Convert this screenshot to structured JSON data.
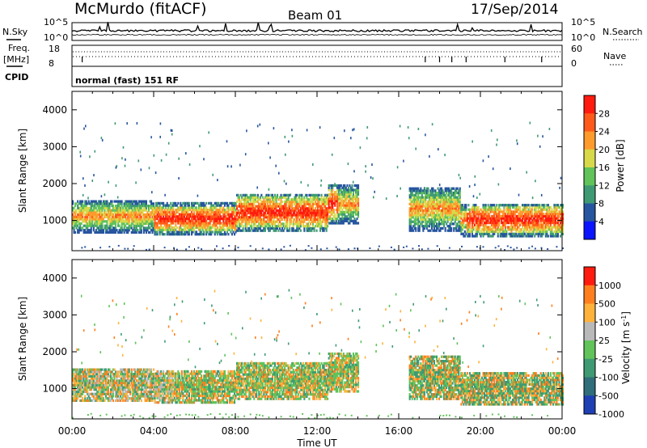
{
  "header": {
    "station": "McMurdo (fitACF)",
    "beam": "Beam 01",
    "date": "17/Sep/2014"
  },
  "noise_panel": {
    "left_label": "N.Sky",
    "right_label": "N.Search",
    "left_ticks": [
      "10^5",
      "10^0"
    ],
    "right_ticks": [
      "10^5",
      "10^0"
    ]
  },
  "freq_panel": {
    "left_label_top": "Freq.",
    "left_label_unit": "[MHz]",
    "right_label": "Nave",
    "left_ticks": [
      "18",
      "8"
    ],
    "right_ticks": [
      "60",
      "0"
    ]
  },
  "cpid_panel": {
    "label": "CPID",
    "text": "normal (fast) 151 RF"
  },
  "colors": {
    "power_scale": [
      "#0a14ff",
      "#27559f",
      "#3f9a73",
      "#61c35a",
      "#d7d94a",
      "#ff9a2d",
      "#ff5a1a",
      "#ff1b0f"
    ],
    "velocity_scale": [
      "#1f3fb5",
      "#2f6e7a",
      "#3f9a73",
      "#61c35a",
      "#b9b9b9",
      "#ffb23b",
      "#ff7f1f",
      "#ff1b0f"
    ]
  },
  "chart_data": [
    {
      "type": "heatmap",
      "name": "power",
      "ylabel": "Slant Range [km]",
      "xlim": [
        0,
        24
      ],
      "ylim": [
        180,
        4500
      ],
      "yticks": [
        "1000",
        "2000",
        "3000",
        "4000"
      ],
      "colorbar": {
        "label": "Power [dB]",
        "ticks": [
          "28",
          "24",
          "20",
          "16",
          "12",
          "8",
          "4"
        ]
      },
      "echo_bands": [
        {
          "t_start": 0.0,
          "t_end": 4.0,
          "range_low": 650,
          "range_high": 1550
        },
        {
          "t_start": 4.0,
          "t_end": 8.0,
          "range_low": 600,
          "range_high": 1450
        },
        {
          "t_start": 8.0,
          "t_end": 12.5,
          "range_low": 700,
          "range_high": 1700
        },
        {
          "t_start": 12.5,
          "t_end": 14.0,
          "range_low": 900,
          "range_high": 1950
        },
        {
          "t_start": 16.5,
          "t_end": 19.0,
          "range_low": 700,
          "range_high": 1900
        },
        {
          "t_start": 19.0,
          "t_end": 24.0,
          "range_low": 550,
          "range_high": 1450
        }
      ]
    },
    {
      "type": "heatmap",
      "name": "velocity",
      "xlabel": "Time UT",
      "ylabel": "Slant Range [km]",
      "xlim": [
        0,
        24
      ],
      "ylim": [
        180,
        4500
      ],
      "xticks": [
        "00:00",
        "04:00",
        "08:00",
        "12:00",
        "16:00",
        "20:00",
        "00:00"
      ],
      "yticks": [
        "1000",
        "2000",
        "3000",
        "4000"
      ],
      "colorbar": {
        "label": "Velocity [m s^-1]",
        "ticks": [
          "1000",
          "500",
          "100",
          "25",
          "-25",
          "-100",
          "-500",
          "-1000"
        ]
      }
    }
  ]
}
